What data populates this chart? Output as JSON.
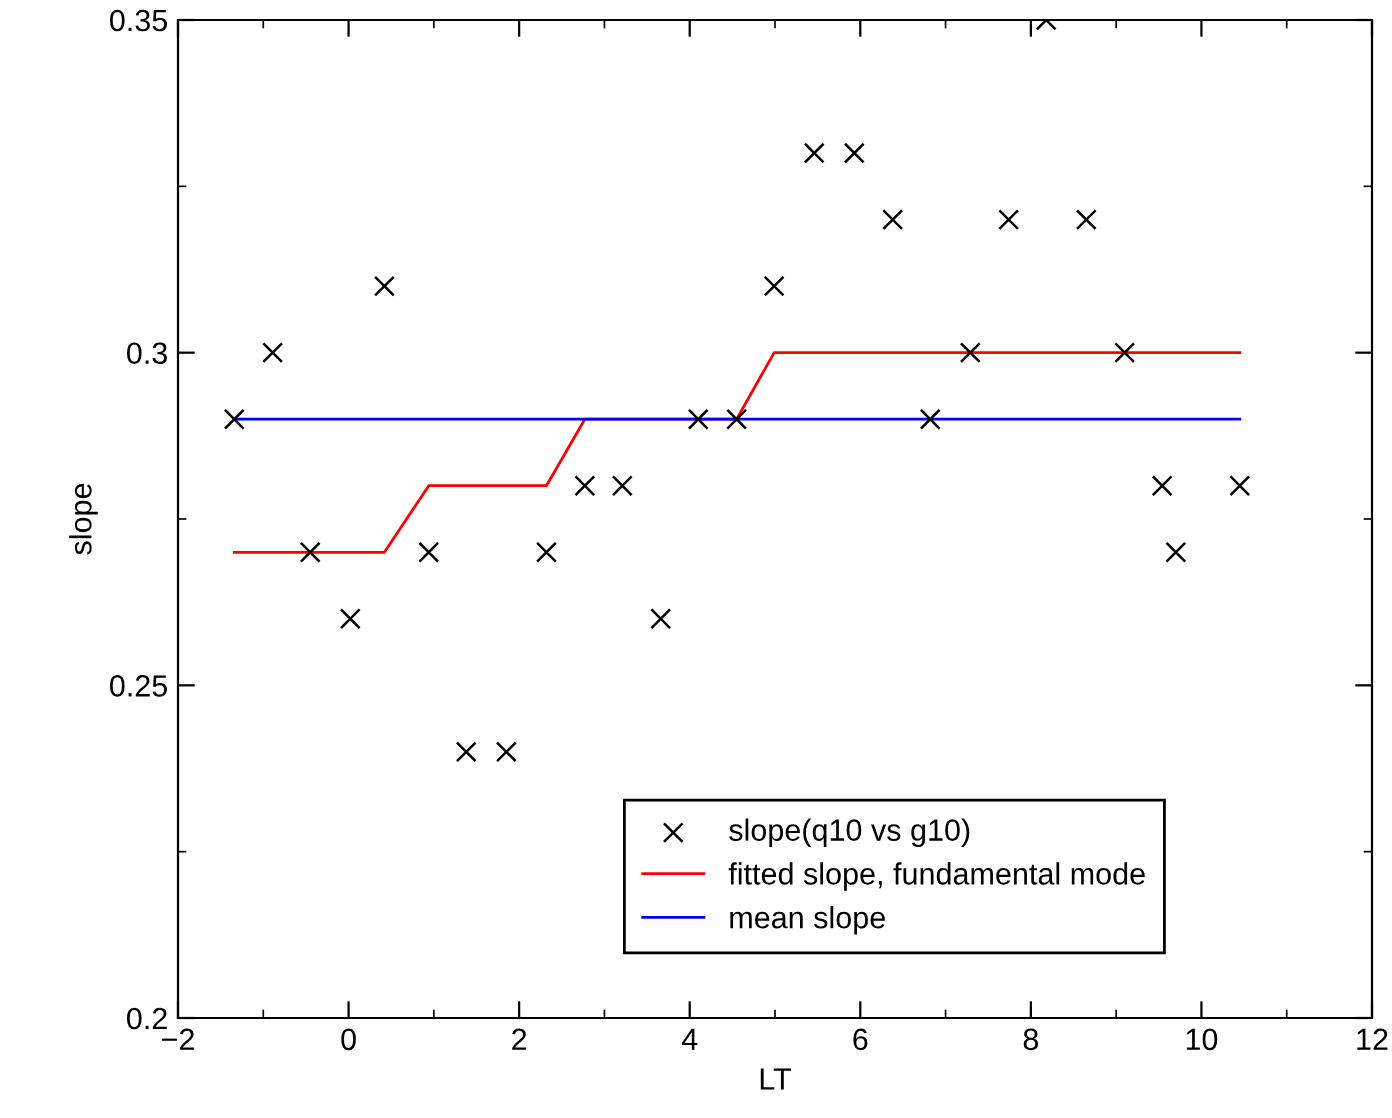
{
  "chart_data": {
    "type": "scatter",
    "xlabel": "LT",
    "ylabel": "slope",
    "xlim": [
      -2,
      12
    ],
    "xticks": [
      {
        "value": -2,
        "label": "−2"
      },
      0,
      2,
      4,
      6,
      8,
      10,
      12
    ],
    "ylim": [
      0.2,
      0.35
    ],
    "yticks": [
      0.2,
      0.25,
      0.3,
      0.35
    ],
    "grid": false,
    "legend": "bottom",
    "series": [
      {
        "name": "slope(q10 vs g10)",
        "marker": "cross",
        "color": "#000000",
        "x": [
          -1.34,
          -0.89,
          -0.45,
          0.02,
          0.42,
          0.94,
          1.38,
          1.85,
          2.32,
          2.77,
          3.21,
          3.66,
          4.1,
          4.55,
          4.99,
          5.46,
          5.93,
          6.38,
          6.82,
          7.29,
          7.74,
          8.18,
          8.65,
          9.1,
          9.54,
          9.7,
          10.45
        ],
        "values": [
          0.29,
          0.3,
          0.27,
          0.26,
          0.31,
          0.27,
          0.24,
          0.24,
          0.27,
          0.28,
          0.28,
          0.26,
          0.29,
          0.29,
          0.31,
          0.33,
          0.33,
          0.32,
          0.29,
          0.3,
          0.32,
          0.35,
          0.32,
          0.3,
          0.28,
          0.27,
          0.28
        ]
      },
      {
        "name": "fitted slope, fundamental mode",
        "type": "line",
        "color": "#ff0000",
        "x": [
          -1.34,
          0.42,
          0.94,
          2.32,
          2.77,
          4.55,
          4.99,
          10.45
        ],
        "values": [
          0.27,
          0.27,
          0.28,
          0.28,
          0.29,
          0.29,
          0.3,
          0.3
        ]
      },
      {
        "name": "mean slope",
        "type": "line",
        "color": "#0000ff",
        "x": [
          -1.34,
          10.45
        ],
        "values": [
          0.29,
          0.29
        ]
      }
    ]
  }
}
